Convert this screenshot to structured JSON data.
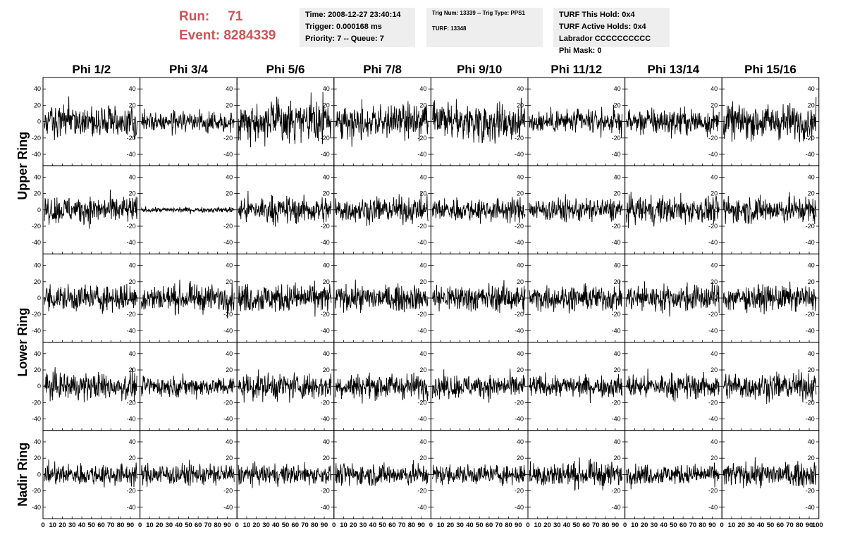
{
  "header": {
    "run_label": "Run:",
    "run_value": "71",
    "event_label": "Event:",
    "event_value": "8284339"
  },
  "info_time": {
    "time": "Time: 2008-12-27 23:40:14",
    "trigger": "Trigger: 0.000168 ms",
    "priority": "Priority: 7 -- Queue: 7"
  },
  "info_trig": {
    "trig": "Trig Num: 13339 -- Trig Type: PPS1",
    "turf": "TURF: 13348"
  },
  "info_turf": {
    "this_hold": "TURF This Hold: 0x4",
    "active_holds": "TURF Active Holds: 0x4",
    "labrador": "Labrador CCCCCCCCCC",
    "phi_mask": "Phi Mask: 0"
  },
  "colors": {
    "header_red": "#cc5555",
    "info_bg": "#eeeeee",
    "trace": "#000000"
  },
  "chart_data": {
    "type": "line",
    "columns": [
      "Phi 1/2",
      "Phi 3/4",
      "Phi 5/6",
      "Phi 7/8",
      "Phi 9/10",
      "Phi 11/12",
      "Phi 13/14",
      "Phi 15/16"
    ],
    "rows": [
      "Upper Ring",
      "Upper Ring",
      "Lower Ring",
      "Lower Ring",
      "Nadir Ring"
    ],
    "ring_labels": [
      "Upper Ring",
      "Lower Ring",
      "Nadir Ring"
    ],
    "xlim": [
      0,
      100
    ],
    "ylim": [
      -50,
      50
    ],
    "x_ticks": [
      0,
      10,
      20,
      30,
      40,
      50,
      60,
      70,
      80,
      90
    ],
    "x_last_tick": "100",
    "y_ticks": [
      -40,
      -20,
      0,
      20,
      40
    ],
    "samples": 260,
    "amplitudes": [
      [
        18,
        11,
        22,
        19,
        21,
        13,
        15,
        19
      ],
      [
        15,
        3,
        15,
        14,
        13,
        13,
        15,
        15
      ],
      [
        15,
        15,
        16,
        14,
        15,
        14,
        15,
        14
      ],
      [
        15,
        11,
        15,
        14,
        13,
        12,
        14,
        15
      ],
      [
        12,
        12,
        11,
        12,
        11,
        14,
        11,
        13
      ]
    ]
  }
}
